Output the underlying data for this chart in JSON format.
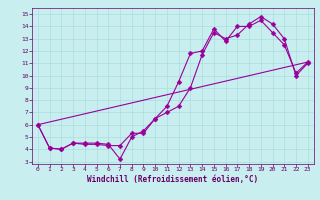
{
  "xlabel": "Windchill (Refroidissement éolien,°C)",
  "bg_color": "#c8eef0",
  "grid_color": "#aadddd",
  "line_color": "#990099",
  "xlim": [
    -0.5,
    23.5
  ],
  "ylim": [
    2.8,
    15.5
  ],
  "xticks": [
    0,
    1,
    2,
    3,
    4,
    5,
    6,
    7,
    8,
    9,
    10,
    11,
    12,
    13,
    14,
    15,
    16,
    17,
    18,
    19,
    20,
    21,
    22,
    23
  ],
  "yticks": [
    3,
    4,
    5,
    6,
    7,
    8,
    9,
    10,
    11,
    12,
    13,
    14,
    15
  ],
  "line1_x": [
    0,
    1,
    2,
    3,
    4,
    5,
    6,
    7,
    8,
    9,
    10,
    11,
    12,
    13,
    14,
    15,
    16,
    17,
    18,
    19,
    20,
    21,
    22,
    23
  ],
  "line1_y": [
    6.0,
    4.1,
    4.0,
    4.5,
    4.5,
    4.5,
    4.4,
    3.2,
    5.0,
    5.5,
    6.5,
    7.0,
    7.5,
    9.0,
    11.7,
    13.5,
    13.0,
    13.3,
    14.2,
    14.8,
    14.2,
    13.0,
    10.0,
    11.0
  ],
  "line2_x": [
    0,
    1,
    2,
    3,
    4,
    5,
    6,
    7,
    8,
    9,
    10,
    11,
    12,
    13,
    14,
    15,
    16,
    17,
    18,
    19,
    20,
    21,
    22,
    23
  ],
  "line2_y": [
    6.0,
    4.1,
    4.0,
    4.5,
    4.4,
    4.4,
    4.3,
    4.3,
    5.3,
    5.3,
    6.5,
    7.5,
    9.5,
    11.8,
    12.0,
    13.8,
    12.8,
    14.0,
    14.0,
    14.5,
    13.5,
    12.5,
    10.2,
    11.1
  ],
  "line3_x": [
    0,
    23
  ],
  "line3_y": [
    6.0,
    11.1
  ],
  "markersize": 2.5,
  "linewidth": 0.8
}
